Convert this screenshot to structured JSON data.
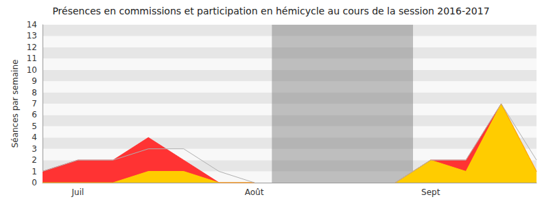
{
  "chart_data": {
    "type": "line",
    "title": "Présences en commissions et participation en hémicycle au cours de la session 2016-2017",
    "y_label": "Séances par semaine",
    "categories": [
      null,
      "Juil",
      null,
      null,
      null,
      null,
      "Août",
      null,
      null,
      null,
      null,
      "Sept",
      null,
      null,
      null
    ],
    "series": [
      {
        "type": "area",
        "color": "#ff3333",
        "values": [
          1,
          2,
          2,
          4,
          2,
          0,
          0,
          null,
          null,
          null,
          0,
          2,
          2,
          7,
          1
        ]
      },
      {
        "type": "area",
        "color": "#ffcc00",
        "values": [
          0,
          0,
          0,
          1,
          1,
          0,
          0,
          null,
          null,
          null,
          0,
          2,
          1,
          7,
          1
        ]
      },
      {
        "type": "line",
        "color": "#b0b0b0",
        "values": [
          1,
          2,
          2,
          3,
          3,
          1,
          0,
          null,
          null,
          null,
          0,
          2,
          2,
          7,
          2
        ]
      }
    ],
    "ylim": [
      0,
      14
    ],
    "yticks": [
      0,
      1,
      2,
      3,
      4,
      5,
      6,
      7,
      8,
      9,
      10,
      11,
      12,
      13,
      14
    ],
    "grid": true,
    "shaded_weeks": [
      6.5,
      10.5
    ]
  }
}
